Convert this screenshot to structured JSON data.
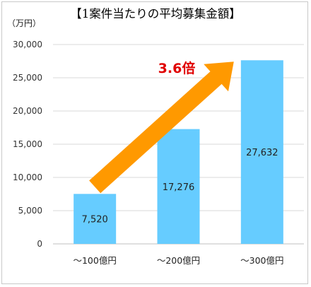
{
  "title": "【1案件当たりの平均募集金額】",
  "unit_label": "（万円）",
  "chart_data": {
    "type": "bar",
    "categories": [
      "～100億円",
      "～200億円",
      "～300億円"
    ],
    "values": [
      7520,
      17276,
      27632
    ],
    "value_labels": [
      "7,520",
      "17,276",
      "27,632"
    ],
    "ylim": [
      0,
      30000
    ],
    "yticks": [
      0,
      5000,
      10000,
      15000,
      20000,
      25000,
      30000
    ],
    "ytick_labels": [
      "0",
      "5,000",
      "10,000",
      "15,000",
      "20,000",
      "25,000",
      "30,000"
    ],
    "grid": true,
    "annotation": "3.6倍",
    "colors": {
      "bar": "#66ccff",
      "arrow": "#ff9900",
      "annotation": "#e00000",
      "grid": "#d9d9d9"
    }
  }
}
